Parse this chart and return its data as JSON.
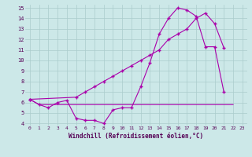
{
  "xlabel": "Windchill (Refroidissement éolien,°C)",
  "x_all": [
    0,
    1,
    2,
    3,
    4,
    5,
    6,
    7,
    8,
    9,
    10,
    11,
    12,
    13,
    14,
    15,
    16,
    17,
    18,
    19,
    20,
    21,
    22,
    23
  ],
  "line1_y": [
    6.3,
    5.8,
    5.5,
    6.0,
    6.2,
    4.5,
    4.3,
    4.3,
    4.0,
    5.3,
    5.5,
    5.5,
    7.5,
    9.8,
    12.5,
    14.0,
    15.0,
    14.8,
    14.2,
    11.3,
    11.3,
    7.0,
    null,
    null
  ],
  "line2_y": [
    6.3,
    null,
    null,
    null,
    null,
    6.5,
    7.0,
    7.5,
    8.0,
    8.5,
    9.0,
    9.5,
    10.0,
    10.5,
    11.0,
    12.0,
    12.5,
    13.0,
    14.0,
    14.5,
    13.5,
    11.2,
    null,
    null
  ],
  "line3_y": [
    6.3,
    5.8,
    5.8,
    5.8,
    5.8,
    5.8,
    5.8,
    5.8,
    5.8,
    5.8,
    5.8,
    5.8,
    5.8,
    5.8,
    5.8,
    5.8,
    5.8,
    5.8,
    5.8,
    5.8,
    5.8,
    5.8,
    5.8,
    null
  ],
  "bg_color": "#cce8e8",
  "grid_color": "#aacccc",
  "line_color": "#aa00aa",
  "xlim": [
    -0.5,
    23.5
  ],
  "ylim": [
    3.8,
    15.3
  ],
  "yticks": [
    4,
    5,
    6,
    7,
    8,
    9,
    10,
    11,
    12,
    13,
    14,
    15
  ],
  "xticks": [
    0,
    1,
    2,
    3,
    4,
    5,
    6,
    7,
    8,
    9,
    10,
    11,
    12,
    13,
    14,
    15,
    16,
    17,
    18,
    19,
    20,
    21,
    22,
    23
  ]
}
